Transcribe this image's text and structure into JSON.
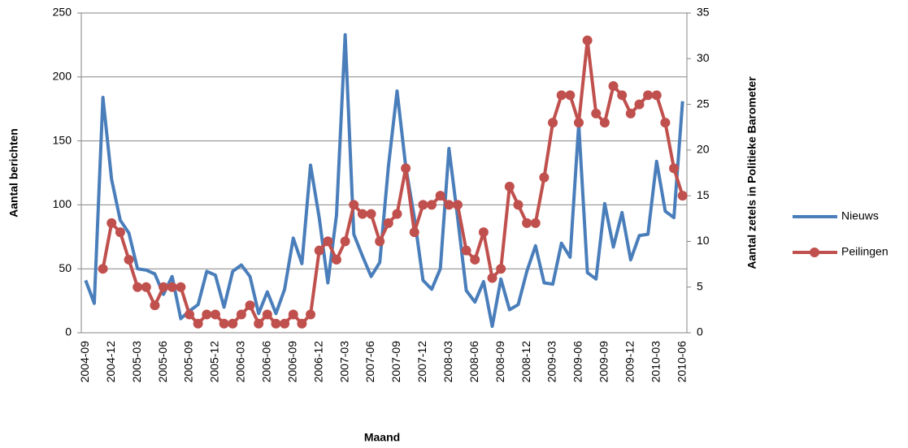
{
  "chart_data": {
    "type": "line",
    "x_label": "Maand",
    "y_label": "Aantal berichten",
    "y2_label": "Aantal zetels in Politieke Barometer",
    "categories": [
      "2004-09",
      null,
      null,
      "2004-12",
      null,
      null,
      "2005-03",
      null,
      null,
      "2005-06",
      null,
      null,
      "2005-09",
      null,
      null,
      "2005-12",
      null,
      null,
      "2006-03",
      null,
      null,
      "2006-06",
      null,
      null,
      "2006-09",
      null,
      null,
      "2006-12",
      null,
      null,
      "2007-03",
      null,
      null,
      "2007-06",
      null,
      null,
      "2007-09",
      null,
      null,
      "2007-12",
      null,
      null,
      "2008-03",
      null,
      null,
      "2008-06",
      null,
      null,
      "2008-09",
      null,
      null,
      "2008-12",
      null,
      null,
      "2009-03",
      null,
      null,
      "2009-06",
      null,
      null,
      "2009-09",
      null,
      null,
      "2009-12",
      null,
      null,
      "2010-03",
      null,
      null,
      "2010-06"
    ],
    "series": [
      {
        "name": "Nieuws",
        "color": "#4a7ebb",
        "marker": false,
        "values": [
          41,
          23,
          184,
          120,
          88,
          78,
          50,
          49,
          46,
          30,
          44,
          11,
          17,
          22,
          48,
          45,
          20,
          48,
          53,
          44,
          15,
          32,
          15,
          34,
          74,
          54,
          131,
          90,
          39,
          92,
          233,
          77,
          60,
          44,
          55,
          130,
          189,
          130,
          90,
          41,
          34,
          50,
          144,
          90,
          33,
          24,
          40,
          5,
          42,
          18,
          22,
          48,
          68,
          39,
          38,
          70,
          59,
          163,
          47,
          42,
          101,
          67,
          94,
          57,
          76,
          77,
          134,
          95,
          90,
          181
        ]
      },
      {
        "name": "Peilingen",
        "color": "#c0504d",
        "marker": true,
        "axis": "y2",
        "values": [
          null,
          null,
          7,
          12,
          11,
          8,
          5,
          5,
          3,
          5,
          5,
          5,
          2,
          1,
          2,
          2,
          1,
          1,
          2,
          3,
          1,
          2,
          1,
          1,
          2,
          1,
          2,
          9,
          10,
          8,
          10,
          14,
          13,
          13,
          10,
          12,
          13,
          18,
          11,
          14,
          14,
          15,
          14,
          14,
          9,
          8,
          11,
          6,
          7,
          16,
          14,
          12,
          12,
          17,
          23,
          26,
          26,
          23,
          32,
          24,
          23,
          27,
          26,
          24,
          25,
          26,
          26,
          23,
          18,
          15
        ]
      }
    ],
    "ylim": [
      0,
      250
    ],
    "yticks": [
      0,
      50,
      100,
      150,
      200,
      250
    ],
    "y2lim": [
      0,
      35
    ],
    "y2ticks": [
      0,
      5,
      10,
      15,
      20,
      25,
      30,
      35
    ],
    "grid": true,
    "legend": "right"
  }
}
